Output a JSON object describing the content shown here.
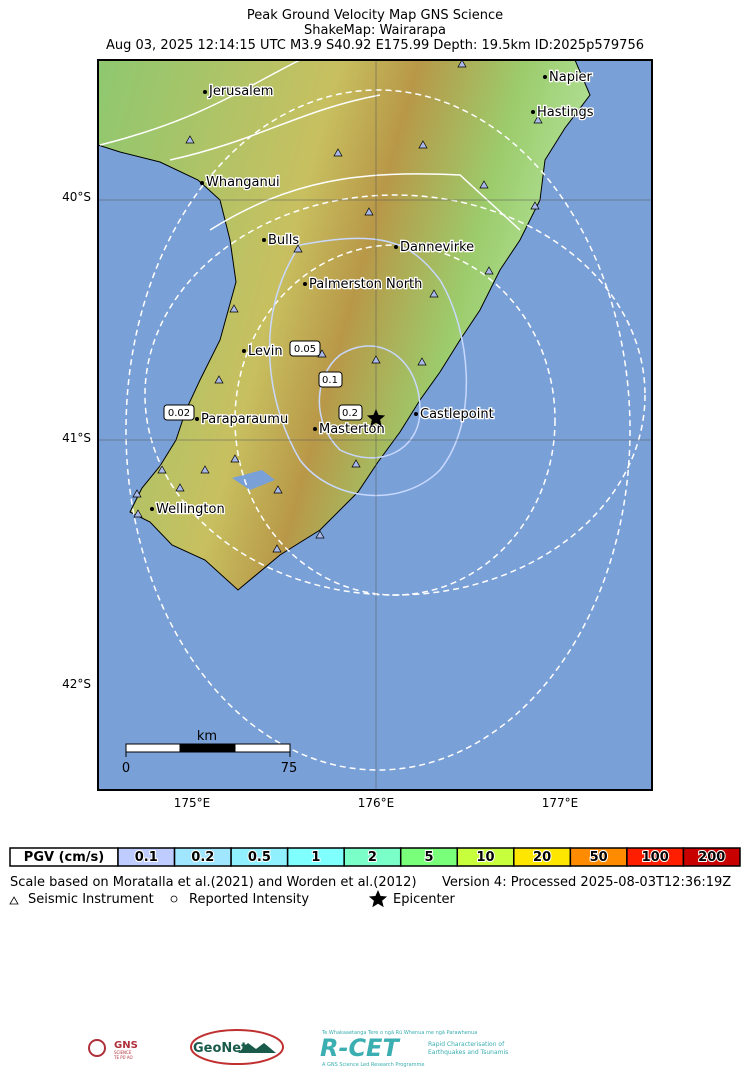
{
  "header": {
    "title": "Peak Ground Velocity Map GNS Science",
    "subtitle": "ShakeMap: Wairarapa",
    "details": "Aug 03, 2025 12:14:15 UTC M3.9 S40.92 E175.99 Depth: 19.5km ID:2025p579756"
  },
  "map": {
    "lat_labels": [
      "40°S",
      "41°S",
      "42°S"
    ],
    "lon_labels": [
      "175°E",
      "176°E",
      "177°E"
    ],
    "places": [
      "Jerusalem",
      "Napier",
      "Hastings",
      "Whanganui",
      "Bulls",
      "Dannevirke",
      "Palmerston North",
      "Levin",
      "Paraparaumu",
      "Castlepoint",
      "Masterton",
      "Wellington"
    ],
    "contour_labels": [
      "0.05",
      "0.1",
      "0.2",
      "0.02"
    ],
    "scale_bar": {
      "unit": "km",
      "start": "0",
      "end": "75"
    }
  },
  "legend": {
    "header": "PGV (cm/s)",
    "bins": [
      "0.1",
      "0.2",
      "0.5",
      "1",
      "2",
      "5",
      "10",
      "20",
      "50",
      "100",
      "200"
    ]
  },
  "footer": {
    "scale_note": "Scale based on Moratalla et al.(2021) and Worden et al.(2012)",
    "version": "Version 4: Processed 2025-08-03T12:36:19Z",
    "symbols": [
      "Seismic Instrument",
      "Reported Intensity",
      "Epicenter"
    ]
  },
  "logos": {
    "gns": "GNS",
    "gns_sub": "SCIENCE",
    "gns_maori": "TE PŪ AO",
    "geonet": "GeoNet",
    "rcet": "R-CET",
    "rcet_top": "Te Whakaaetanga Tere o ngā Rū Whenua me ngā Parawhenua",
    "rcet_line1": "Rapid Characterisation of",
    "rcet_line2": "Earthquakes and Tsunamis",
    "rcet_bottom": "A GNS Science Led Research Programme"
  }
}
